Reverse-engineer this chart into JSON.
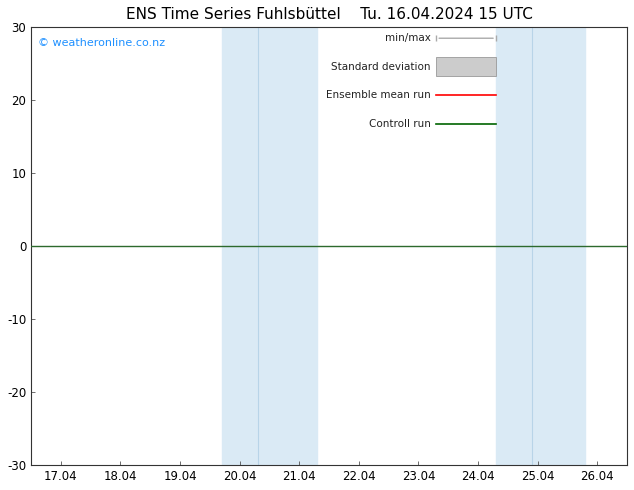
{
  "title": "ENS Time Series Fuhlsbüttel",
  "title2": "Tu. 16.04.2024 15 UTC",
  "watermark": "© weatheronline.co.nz",
  "ylim": [
    -30,
    30
  ],
  "yticks": [
    -30,
    -20,
    -10,
    0,
    10,
    20,
    30
  ],
  "xtick_labels": [
    "17.04",
    "18.04",
    "19.04",
    "20.04",
    "21.04",
    "22.04",
    "23.04",
    "24.04",
    "25.04",
    "26.04"
  ],
  "xtick_positions": [
    0,
    1,
    2,
    3,
    4,
    5,
    6,
    7,
    8,
    9
  ],
  "xlim": [
    -0.5,
    9.5
  ],
  "shaded_regions": [
    {
      "xmin": 2.7,
      "xmax": 3.3,
      "color": "#daeaf5"
    },
    {
      "xmin": 3.3,
      "xmax": 4.3,
      "color": "#daeaf5"
    },
    {
      "xmin": 7.3,
      "xmax": 7.9,
      "color": "#daeaf5"
    },
    {
      "xmin": 7.9,
      "xmax": 8.8,
      "color": "#daeaf5"
    }
  ],
  "hline_y": 0,
  "hline_color": "#2d6a2d",
  "background_color": "#ffffff",
  "title_fontsize": 11,
  "watermark_color": "#1e90ff",
  "watermark_fontsize": 8,
  "legend_fontsize": 7.5,
  "minmax_color": "#aaaaaa",
  "stddev_color": "#cccccc",
  "ensemble_color": "#ff0000",
  "control_color": "#006400"
}
